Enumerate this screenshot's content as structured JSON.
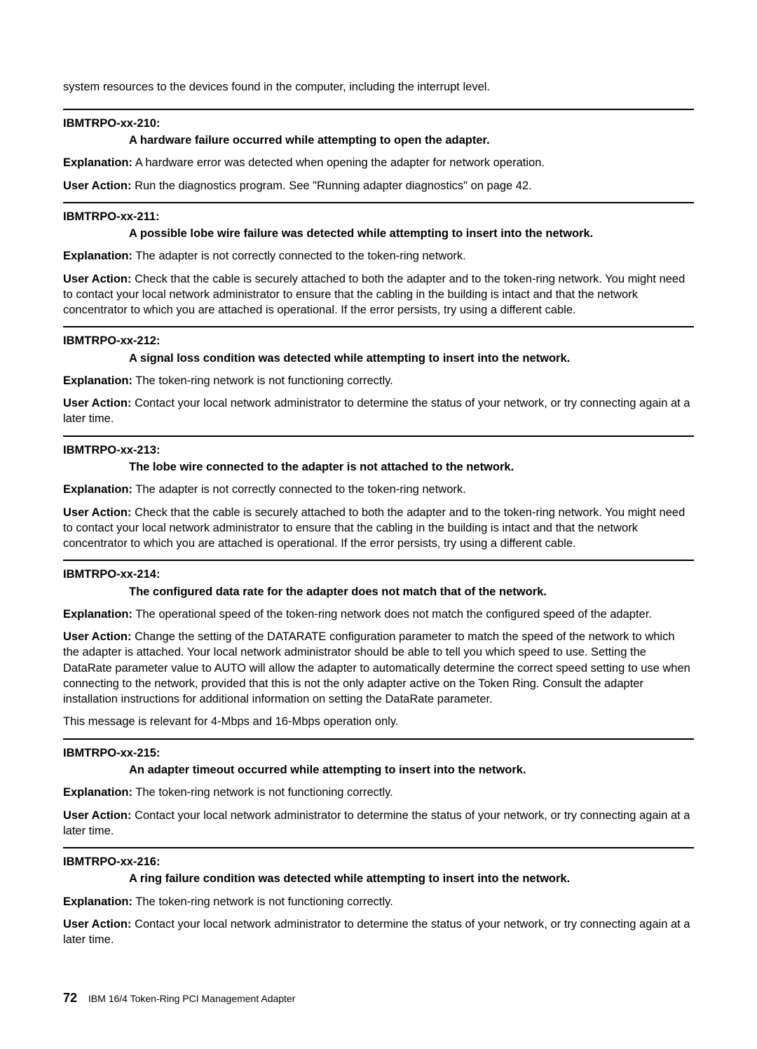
{
  "intro": "system resources to the devices found in the computer, including the interrupt level.",
  "labels": {
    "explanation": "Explanation:",
    "userAction": "User Action:"
  },
  "entries": [
    {
      "id": "IBMTRPO-xx-210:",
      "title": "A hardware failure occurred while attempting to open the adapter.",
      "explanation": "A hardware error was detected when opening the adapter for network operation.",
      "userAction": "Run the diagnostics program. See \"Running adapter diagnostics\" on page 42.",
      "extra": ""
    },
    {
      "id": "IBMTRPO-xx-211:",
      "title": "A possible lobe wire failure was detected while attempting to insert into the network.",
      "explanation": "The adapter is not correctly connected to the token-ring network.",
      "userAction": "Check that the cable is securely attached to both the adapter and to the token-ring network. You might need to contact your local network administrator to ensure that the cabling in the building is intact and that the network concentrator to which you are attached is operational. If the error persists, try using a different cable.",
      "extra": ""
    },
    {
      "id": "IBMTRPO-xx-212:",
      "title": "A signal loss condition was detected while attempting to insert into the network.",
      "explanation": "The token-ring network is not functioning correctly.",
      "userAction": "Contact your local network administrator to determine the status of your network, or try connecting again at a later time.",
      "extra": ""
    },
    {
      "id": "IBMTRPO-xx-213:",
      "title": "The lobe wire connected to the adapter is not attached to the network.",
      "explanation": "The adapter is not correctly connected to the token-ring network.",
      "userAction": "Check that the cable is securely attached to both the adapter and to the token-ring network. You might need to contact your local network administrator to ensure that the cabling in the building is intact and that the network concentrator to which you are attached is operational. If the error persists, try using a different cable.",
      "extra": ""
    },
    {
      "id": "IBMTRPO-xx-214:",
      "title": "The configured data rate for the adapter does not match that of the network.",
      "explanation": "The operational speed of the token-ring network does not match the configured speed of the adapter.",
      "userAction": "Change the setting of the DATARATE configuration parameter to match the speed of the network to which the adapter is attached. Your local network administrator should be able to tell you which speed to use. Setting the DataRate parameter value to AUTO will allow the adapter to automatically determine the correct speed setting to use when connecting to the network, provided that this is not the only adapter active on the Token Ring. Consult the adapter installation instructions for additional information on setting the DataRate parameter.",
      "extra": "This message is relevant for 4-Mbps and 16-Mbps operation only."
    },
    {
      "id": "IBMTRPO-xx-215:",
      "title": "An adapter timeout occurred while attempting to insert into the network.",
      "explanation": "The token-ring network is not functioning correctly.",
      "userAction": "Contact your local network administrator to determine the status of your network, or try connecting again at a later time.",
      "extra": ""
    },
    {
      "id": "IBMTRPO-xx-216:",
      "title": "A ring failure condition was detected while attempting to insert into the network.",
      "explanation": "The token-ring network is not functioning correctly.",
      "userAction": "Contact your local network administrator to determine the status of your network, or try connecting again at a later time.",
      "extra": ""
    }
  ],
  "footer": {
    "pageNumber": "72",
    "docTitle": "IBM 16/4 Token-Ring PCI Management Adapter"
  }
}
